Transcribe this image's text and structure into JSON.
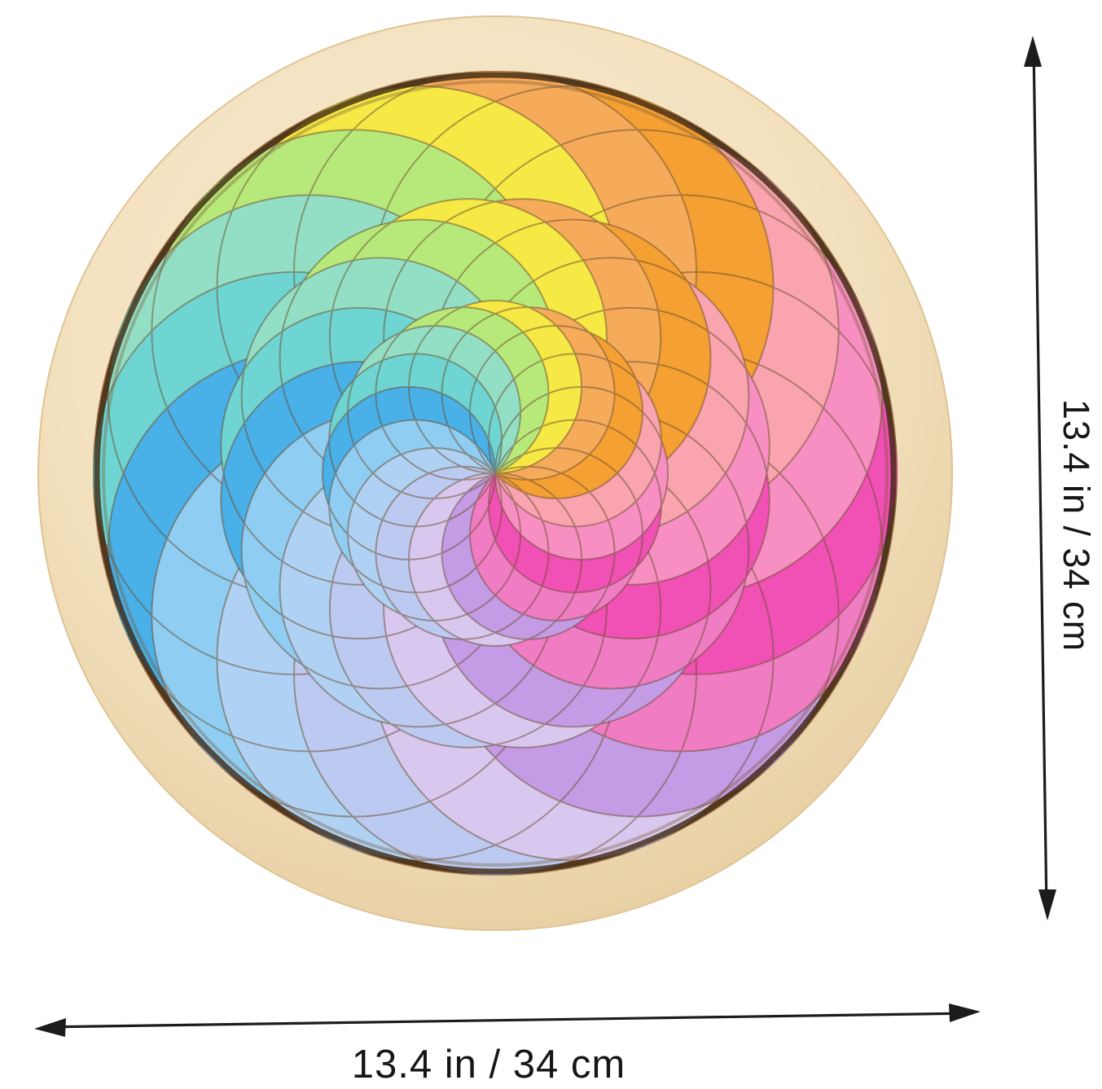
{
  "page": {
    "background_color": "#ffffff"
  },
  "dimensions": {
    "vertical": {
      "label": "13.4 in / 34 cm"
    },
    "horizontal": {
      "label": "13.4 in / 34 cm"
    },
    "arrow_color": "#1c1c1c",
    "text_color": "#161616"
  },
  "puzzle": {
    "type": "wooden rainbow pinwheel crescent puzzle",
    "segments_per_ring": 16,
    "rings_config": [
      {
        "name": "outer",
        "radius": 247,
        "angle_offset": 0,
        "palette_shift": 0
      },
      {
        "name": "middle",
        "radius": 170,
        "angle_offset": -11.25,
        "palette_shift": -1
      },
      {
        "name": "inner",
        "radius": 106,
        "angle_offset": -22.5,
        "palette_shift": -2
      }
    ],
    "palette": [
      {
        "name": "light-orange",
        "hex": "#F6AB5B"
      },
      {
        "name": "orange",
        "hex": "#F5A033"
      },
      {
        "name": "salmon-pink",
        "hex": "#F9A4AE"
      },
      {
        "name": "pink",
        "hex": "#F78FC2"
      },
      {
        "name": "magenta",
        "hex": "#F150B5"
      },
      {
        "name": "rose-pink",
        "hex": "#F07CC4"
      },
      {
        "name": "lavender",
        "hex": "#C49BE5"
      },
      {
        "name": "pale-lavender",
        "hex": "#D8C8EF"
      },
      {
        "name": "periwinkle",
        "hex": "#BCC9F1"
      },
      {
        "name": "light-blue",
        "hex": "#AFD2F4"
      },
      {
        "name": "sky-blue",
        "hex": "#8FCDF2"
      },
      {
        "name": "blue",
        "hex": "#49B0E8"
      },
      {
        "name": "teal",
        "hex": "#6ED5D2"
      },
      {
        "name": "mint-green",
        "hex": "#93DFC5"
      },
      {
        "name": "lime-green",
        "hex": "#B7E97A"
      },
      {
        "name": "yellow",
        "hex": "#F6E845"
      }
    ],
    "tray": {
      "wood_light": "#F8ECD2",
      "wood_mid": "#F3E1BE",
      "wood_dark": "#E8D0A4",
      "wood_edge": "#DFC394",
      "recess_light": "#E6C89B",
      "recess_mid": "#D2AD7B",
      "recess_dark": "#9E744A",
      "rim_shadow": "#3E2812",
      "seam": "#6B4E2E"
    }
  }
}
